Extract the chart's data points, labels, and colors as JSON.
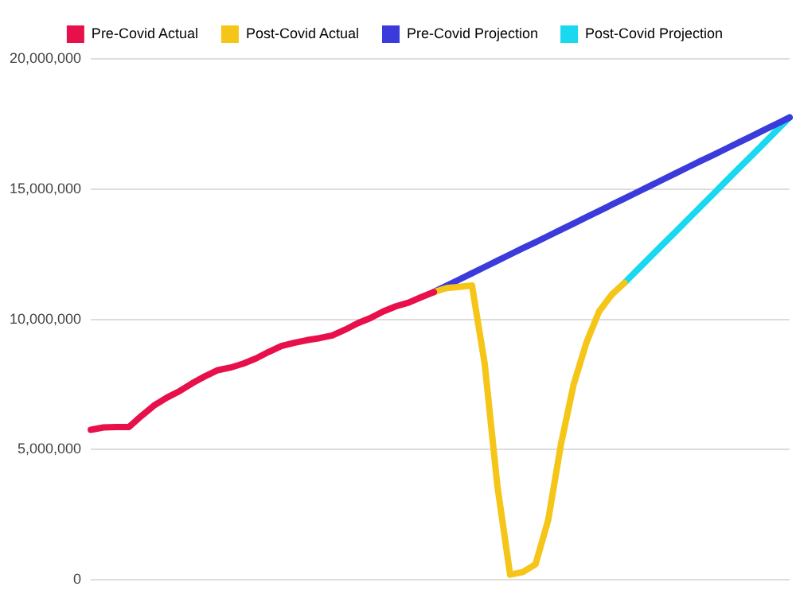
{
  "chart_data": {
    "type": "line",
    "categories": [
      null,
      null,
      null,
      null,
      null,
      null,
      null,
      null,
      null,
      null,
      null,
      null,
      null,
      null,
      null,
      null,
      null,
      null,
      null,
      null,
      null,
      null,
      null,
      null,
      null,
      null,
      null,
      null,
      null,
      null,
      null,
      null,
      null,
      null,
      null,
      null,
      null,
      null,
      null,
      null,
      null,
      null,
      null,
      null,
      null,
      null,
      null,
      null,
      null,
      null,
      null,
      null,
      null,
      null,
      null,
      null
    ],
    "ylim": [
      0,
      20000000
    ],
    "yticks": [
      0,
      {
        "value": 5000000,
        "label": "5,000,000"
      },
      {
        "value": 10000000,
        "label": "10,000,000"
      },
      {
        "value": 15000000,
        "label": "15,000,000"
      },
      {
        "value": 20000000,
        "label": "20,000,000"
      }
    ],
    "grid": "y",
    "legend": "top",
    "tick_labels": "y",
    "line_style": "solid",
    "series": [
      {
        "name": "Pre-Covid Actual",
        "color": "#e8104a",
        "marker": "circle",
        "values": [
          5760000,
          5850000,
          5870000,
          5870000,
          6300000,
          6700000,
          7000000,
          7250000,
          7550000,
          7820000,
          8050000,
          8150000,
          8300000,
          8500000,
          8750000,
          8980000,
          9100000,
          9200000,
          9280000,
          9380000,
          9600000,
          9850000,
          10050000,
          10300000,
          10500000,
          10640000,
          10850000,
          11050000,
          null,
          null,
          null,
          null,
          null,
          null,
          null,
          null,
          null,
          null,
          null,
          null,
          null,
          null,
          null,
          null,
          null,
          null,
          null,
          null,
          null,
          null,
          null,
          null,
          null,
          null,
          null,
          null
        ]
      },
      {
        "name": "Post-Covid Actual",
        "color": "#f5c518",
        "marker": "circle",
        "values": [
          null,
          null,
          null,
          null,
          null,
          null,
          null,
          null,
          null,
          null,
          null,
          null,
          null,
          null,
          null,
          null,
          null,
          null,
          null,
          null,
          null,
          null,
          null,
          null,
          null,
          null,
          null,
          11050000,
          11200000,
          11250000,
          11300000,
          8300000,
          3600000,
          200000,
          300000,
          600000,
          2300000,
          5200000,
          7500000,
          9100000,
          10300000,
          10950000,
          11400000,
          null,
          null,
          null,
          null,
          null,
          null,
          null,
          null,
          null,
          null,
          null,
          null,
          null
        ]
      },
      {
        "name": "Pre-Covid Projection",
        "color": "#3b3bdc",
        "marker": "none",
        "values": [
          null,
          null,
          null,
          null,
          null,
          null,
          null,
          null,
          null,
          null,
          null,
          null,
          null,
          null,
          null,
          null,
          null,
          null,
          null,
          null,
          null,
          null,
          null,
          null,
          null,
          null,
          null,
          11050000,
          11290000,
          11530000,
          11770000,
          12010000,
          12250000,
          12490000,
          12730000,
          12960000,
          13200000,
          13440000,
          13680000,
          13920000,
          14160000,
          14400000,
          14640000,
          14880000,
          15120000,
          15360000,
          15600000,
          15840000,
          16080000,
          16310000,
          16550000,
          16790000,
          17030000,
          17270000,
          17510000,
          17750000
        ]
      },
      {
        "name": "Post-Covid Projection",
        "color": "#1ad8f0",
        "marker": "none",
        "values": [
          null,
          null,
          null,
          null,
          null,
          null,
          null,
          null,
          null,
          null,
          null,
          null,
          null,
          null,
          null,
          null,
          null,
          null,
          null,
          null,
          null,
          null,
          null,
          null,
          null,
          null,
          null,
          null,
          null,
          null,
          null,
          null,
          null,
          null,
          null,
          null,
          null,
          null,
          null,
          null,
          null,
          null,
          11400000,
          11890000,
          12380000,
          12870000,
          13350000,
          13840000,
          14330000,
          14820000,
          15310000,
          15800000,
          16280000,
          16770000,
          17260000,
          17750000
        ]
      }
    ]
  }
}
